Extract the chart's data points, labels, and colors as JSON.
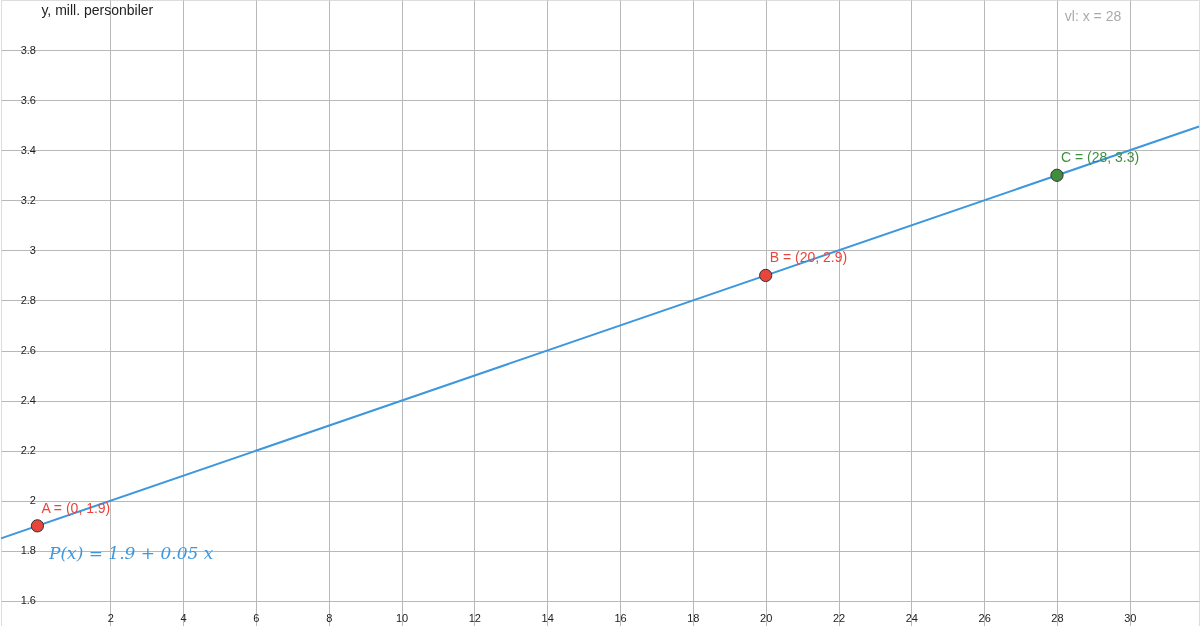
{
  "chart_data": {
    "type": "line",
    "ylabel": "y, mill. personbiler",
    "xlim": [
      -1,
      31.9
    ],
    "ylim": [
      1.5,
      4.0
    ],
    "xticks": [
      2,
      4,
      6,
      8,
      10,
      12,
      14,
      16,
      18,
      20,
      22,
      24,
      26,
      28,
      30
    ],
    "yticks": [
      1.6,
      1.8,
      2,
      2.2,
      2.4,
      2.6,
      2.8,
      3,
      3.2,
      3.4,
      3.6,
      3.8
    ],
    "grid": true,
    "series": [
      {
        "name": "P(x) = 1.9 + 0.05 x",
        "color": "#3d97dc",
        "x": [
          -1,
          31.9
        ],
        "values": [
          1.85,
          3.495
        ]
      },
      {
        "type": "scatter",
        "colors": [
          "#e8453c",
          "#e8453c",
          "#3e8e3e"
        ],
        "x": [
          0,
          20,
          28
        ],
        "values": [
          1.9,
          2.9,
          3.3
        ],
        "marker": "circle"
      }
    ],
    "annotations": [
      {
        "text": "A = (0, 1.9)",
        "x": 0,
        "y": 1.9
      },
      {
        "text": "B = (20, 2.9)",
        "x": 20,
        "y": 2.9
      },
      {
        "text": "C = (28, 3.3)",
        "x": 28,
        "y": 3.3
      },
      "vl: x = 28"
    ]
  }
}
